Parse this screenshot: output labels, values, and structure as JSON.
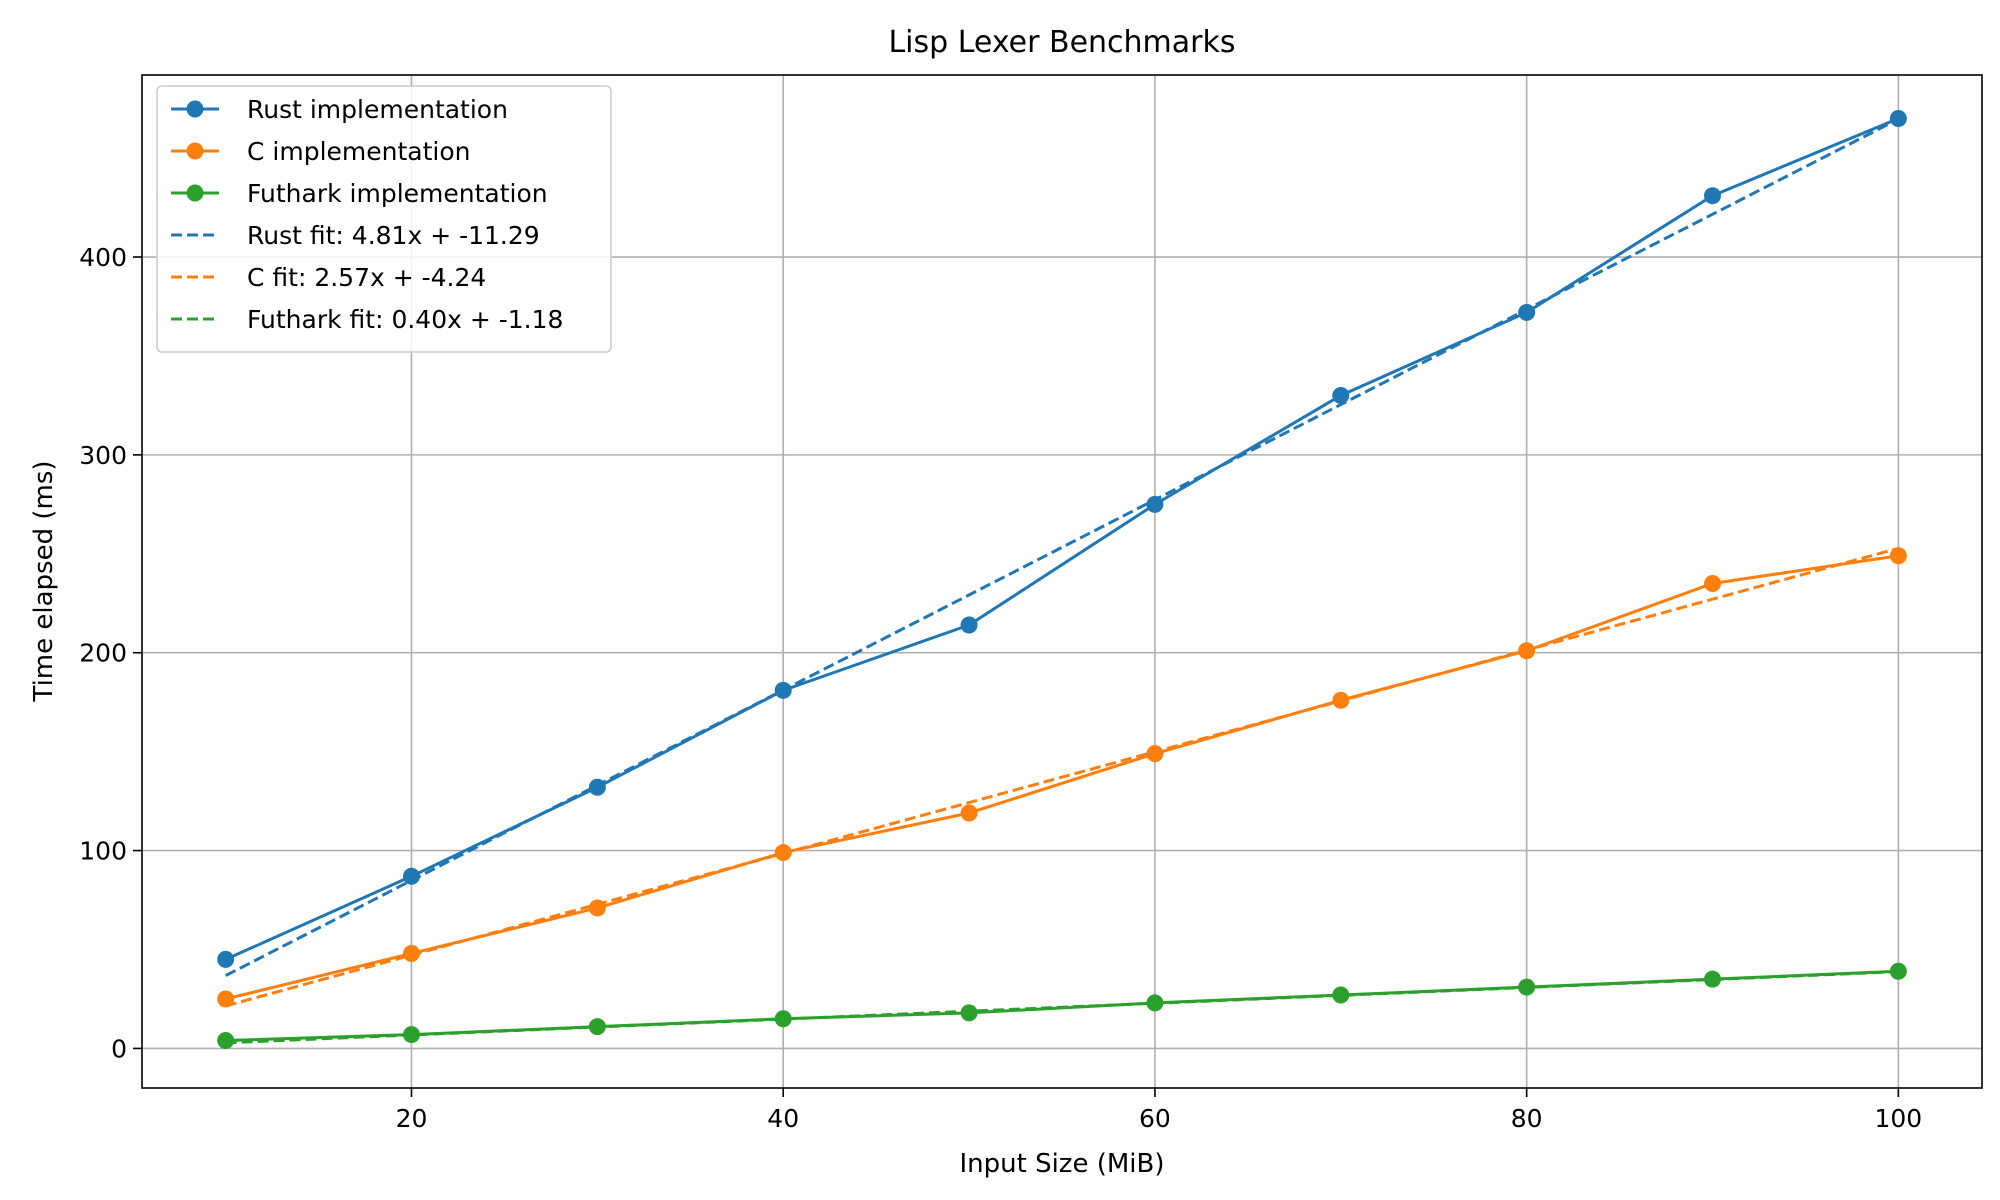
{
  "chart_data": {
    "type": "line",
    "title": "Lisp Lexer Benchmarks",
    "xlabel": "Input Size (MiB)",
    "ylabel": "Time elapsed (ms)",
    "xlim": [
      5.5,
      104.5
    ],
    "ylim": [
      -20,
      492
    ],
    "xticks": [
      20,
      40,
      60,
      80,
      100
    ],
    "yticks": [
      0,
      100,
      200,
      300,
      400
    ],
    "grid": true,
    "legend_position": "top-left",
    "x": [
      10,
      20,
      30,
      40,
      50,
      60,
      70,
      80,
      90,
      100
    ],
    "series": [
      {
        "name": "Rust implementation",
        "color": "#1f77b4",
        "style": "solid-marker",
        "values": [
          45,
          87,
          132,
          181,
          214,
          275,
          330,
          372,
          431,
          470
        ]
      },
      {
        "name": "C implementation",
        "color": "#ff7f0e",
        "style": "solid-marker",
        "values": [
          25,
          48,
          71,
          99,
          119,
          149,
          176,
          201,
          235,
          249
        ]
      },
      {
        "name": "Futhark implementation",
        "color": "#2ca02c",
        "style": "solid-marker",
        "values": [
          4,
          7,
          11,
          15,
          18,
          23,
          27,
          31,
          35,
          39
        ]
      }
    ],
    "fits": [
      {
        "name": "Rust fit: 4.81x + -11.29",
        "color": "#1f77b4",
        "style": "dashed",
        "slope": 4.81,
        "intercept": -11.29
      },
      {
        "name": "C fit: 2.57x + -4.24",
        "color": "#ff7f0e",
        "style": "dashed",
        "slope": 2.57,
        "intercept": -4.24
      },
      {
        "name": "Futhark fit: 0.40x + -1.18",
        "color": "#2ca02c",
        "style": "dashed",
        "slope": 0.4,
        "intercept": -1.18
      }
    ]
  }
}
